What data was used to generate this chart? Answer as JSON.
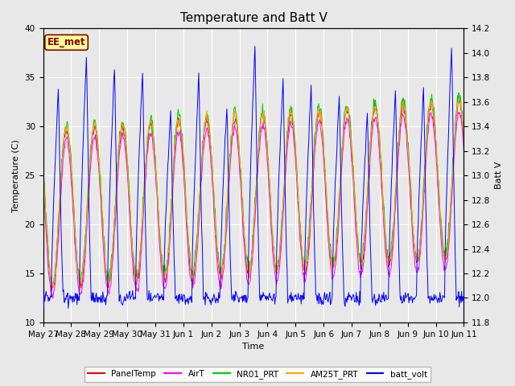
{
  "title": "Temperature and Batt V",
  "xlabel": "Time",
  "ylabel_left": "Temperature (C)",
  "ylabel_right": "Batt V",
  "annotation": "EE_met",
  "ylim_left": [
    10,
    40
  ],
  "ylim_right": [
    11.8,
    14.2
  ],
  "yticks_left": [
    10,
    15,
    20,
    25,
    30,
    35,
    40
  ],
  "yticks_right": [
    11.8,
    12.0,
    12.2,
    12.4,
    12.6,
    12.8,
    13.0,
    13.2,
    13.4,
    13.6,
    13.8,
    14.0,
    14.2
  ],
  "xtick_labels": [
    "May 27",
    "May 28",
    "May 29",
    "May 30",
    "May 31",
    "Jun 1",
    "Jun 2",
    "Jun 3",
    "Jun 4",
    "Jun 5",
    "Jun 6",
    "Jun 7",
    "Jun 8",
    "Jun 9",
    "Jun 10",
    "Jun 11"
  ],
  "legend_entries": [
    "PanelTemp",
    "AirT",
    "NR01_PRT",
    "AM25T_PRT",
    "batt_volt"
  ],
  "legend_colors": [
    "#ff0000",
    "#ff00ff",
    "#00cc00",
    "#ffa500",
    "#0000ff"
  ],
  "fig_bg_color": "#e8e8e8",
  "plot_bg_color": "#e8e8e8",
  "grid_color": "#ffffff",
  "annotation_text_color": "#8B0000",
  "annotation_bg_color": "#ffff99",
  "annotation_edge_color": "#8B0000",
  "title_fontsize": 11,
  "label_fontsize": 8,
  "tick_fontsize": 7.5
}
